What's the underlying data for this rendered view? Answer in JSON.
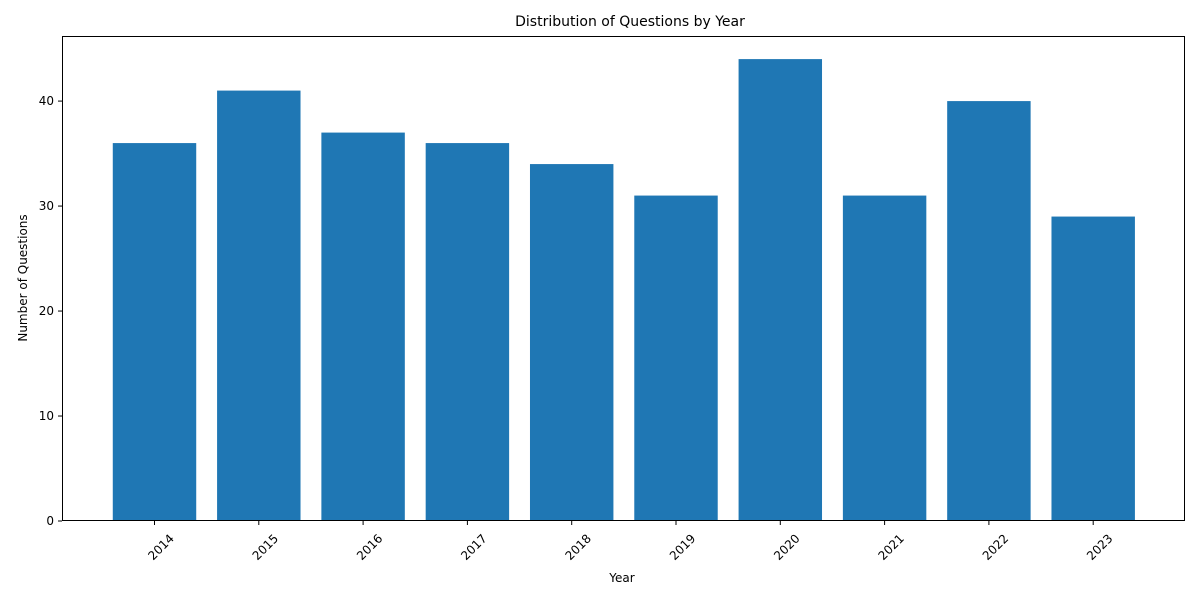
{
  "chart_data": {
    "type": "bar",
    "title": "Distribution of Questions by Year",
    "xlabel": "Year",
    "ylabel": "Number of Questions",
    "categories": [
      "2014",
      "2015",
      "2016",
      "2017",
      "2018",
      "2019",
      "2020",
      "2021",
      "2022",
      "2023"
    ],
    "values": [
      36,
      41,
      37,
      36,
      34,
      31,
      44,
      31,
      40,
      29
    ],
    "ylim": [
      0,
      46.2
    ],
    "yticks": [
      0,
      10,
      20,
      30,
      40
    ],
    "ytick_labels": [
      "0",
      "10",
      "20",
      "30",
      "40"
    ],
    "xtick_rotation_deg": 45,
    "grid": false,
    "legend": "none",
    "colors": {
      "bar": "#1f77b4",
      "axes": "#000000",
      "background": "#ffffff"
    }
  }
}
